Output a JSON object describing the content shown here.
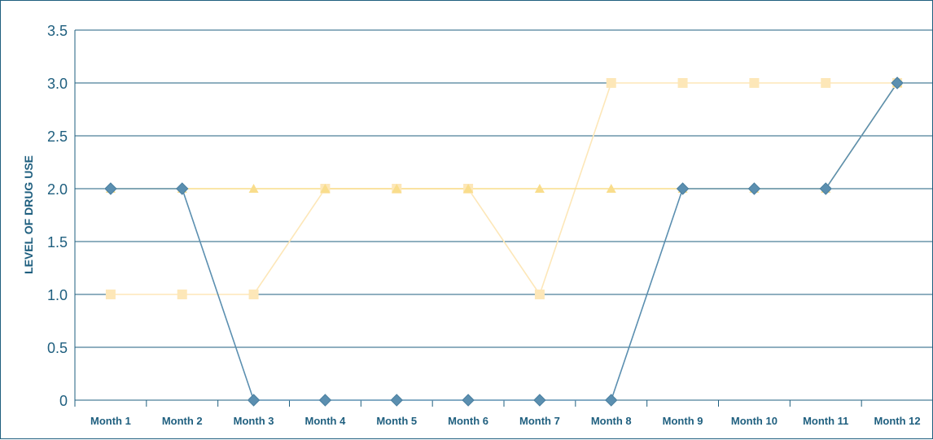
{
  "chart_data": {
    "type": "line",
    "title": "",
    "xlabel": "",
    "ylabel": "LEVEL OF DRUG USE",
    "categories": [
      "Month 1",
      "Month 2",
      "Month 3",
      "Month 4",
      "Month 5",
      "Month 6",
      "Month 7",
      "Month 8",
      "Month 9",
      "Month 10",
      "Month 11",
      "Month 12"
    ],
    "yticks": [
      "0",
      "0.5",
      "1.0",
      "1.5",
      "2.0",
      "2.5",
      "3.0",
      "3.5"
    ],
    "ylim": [
      0,
      3.5
    ],
    "grid": true,
    "legend": "none",
    "series": [
      {
        "marker": "diamond",
        "color": "#5b8fb0",
        "values": [
          2,
          2,
          0,
          0,
          0,
          0,
          0,
          0,
          2,
          2,
          2,
          3
        ]
      },
      {
        "marker": "square",
        "color": "#fde7b8",
        "values": [
          1,
          1,
          1,
          2,
          2,
          2,
          1,
          3,
          3,
          3,
          3,
          3
        ]
      },
      {
        "marker": "triangle",
        "color": "#f9dd8c",
        "values": [
          2,
          2,
          2,
          2,
          2,
          2,
          2,
          2,
          2,
          2,
          2,
          3
        ]
      }
    ]
  }
}
